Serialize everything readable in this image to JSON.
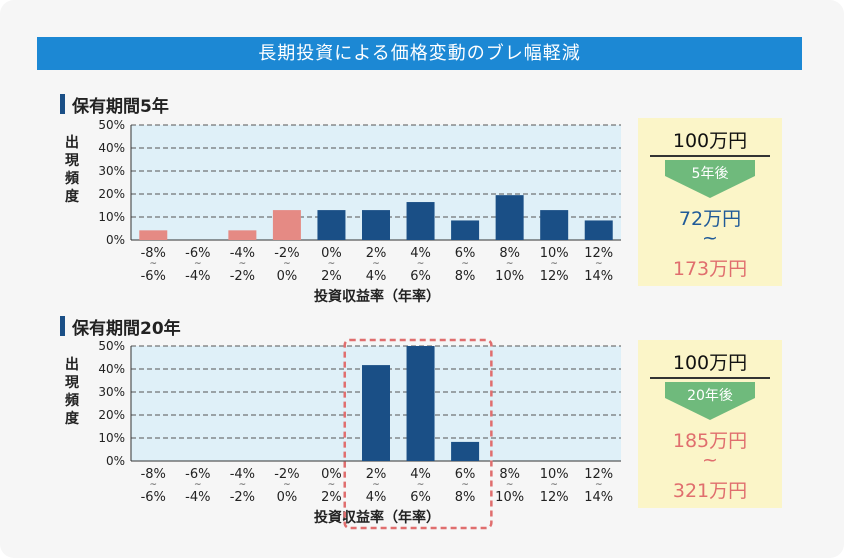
{
  "header": {
    "title": "長期投資による価格変動のブレ幅軽減"
  },
  "colors": {
    "banner": "#1c88d4",
    "bar_negative": "#e58a84",
    "bar_positive": "#1a4f86",
    "highlight": "#e06e6e",
    "plot_bg": "#dff0f8",
    "callout_bg": "#fbf5c8"
  },
  "chart_data": [
    {
      "type": "bar",
      "title": "保有期間5年",
      "ylabel": "出現頻度",
      "xlabel": "投資収益率（年率）",
      "yticks": [
        "0%",
        "10%",
        "20%",
        "30%",
        "40%",
        "50%"
      ],
      "ylim": [
        0,
        50
      ],
      "grid": true,
      "categories": [
        {
          "from": "-8%",
          "sep": "~",
          "to": "-6%"
        },
        {
          "from": "-6%",
          "sep": "~",
          "to": "-4%"
        },
        {
          "from": "-4%",
          "sep": "~",
          "to": "-2%"
        },
        {
          "from": "-2%",
          "sep": "~",
          "to": "0%"
        },
        {
          "from": "0%",
          "sep": "~",
          "to": "2%"
        },
        {
          "from": "2%",
          "sep": "~",
          "to": "4%"
        },
        {
          "from": "4%",
          "sep": "~",
          "to": "6%"
        },
        {
          "from": "6%",
          "sep": "~",
          "to": "8%"
        },
        {
          "from": "8%",
          "sep": "~",
          "to": "10%"
        },
        {
          "from": "10%",
          "sep": "~",
          "to": "12%"
        },
        {
          "from": "12%",
          "sep": "~",
          "to": "14%"
        }
      ],
      "values": [
        4.2,
        0,
        4.2,
        13,
        13,
        13,
        16.5,
        8.5,
        19.5,
        13,
        8.5
      ],
      "highlight": null
    },
    {
      "type": "bar",
      "title": "保有期間20年",
      "ylabel": "出現頻度",
      "xlabel": "投資収益率（年率）",
      "yticks": [
        "0%",
        "10%",
        "20%",
        "30%",
        "40%",
        "50%"
      ],
      "ylim": [
        0,
        50
      ],
      "grid": true,
      "categories": [
        {
          "from": "-8%",
          "sep": "~",
          "to": "-6%"
        },
        {
          "from": "-6%",
          "sep": "~",
          "to": "-4%"
        },
        {
          "from": "-4%",
          "sep": "~",
          "to": "-2%"
        },
        {
          "from": "-2%",
          "sep": "~",
          "to": "0%"
        },
        {
          "from": "0%",
          "sep": "~",
          "to": "2%"
        },
        {
          "from": "2%",
          "sep": "~",
          "to": "4%"
        },
        {
          "from": "4%",
          "sep": "~",
          "to": "6%"
        },
        {
          "from": "6%",
          "sep": "~",
          "to": "8%"
        },
        {
          "from": "8%",
          "sep": "~",
          "to": "10%"
        },
        {
          "from": "10%",
          "sep": "~",
          "to": "12%"
        },
        {
          "from": "12%",
          "sep": "~",
          "to": "14%"
        }
      ],
      "values": [
        0,
        0,
        0,
        0,
        0,
        41.7,
        50,
        8.3,
        0,
        0,
        0
      ],
      "highlight": [
        5,
        7
      ]
    }
  ],
  "callouts": [
    {
      "amount": "100万円",
      "period": "5年後",
      "low": "72万円",
      "sep": "~",
      "high": "173万円"
    },
    {
      "amount": "100万円",
      "period": "20年後",
      "low": "185万円",
      "sep": "~",
      "high": "321万円"
    }
  ]
}
